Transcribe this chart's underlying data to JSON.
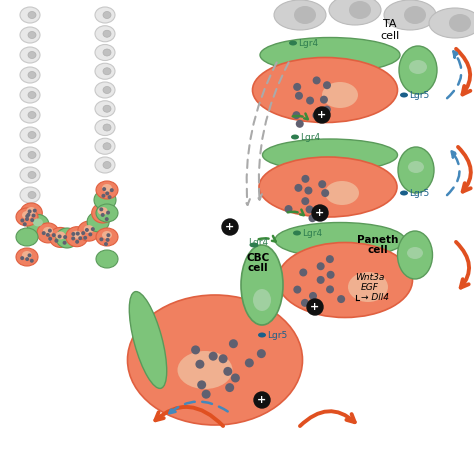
{
  "background_color": "#ffffff",
  "labels": {
    "TA_cell": "TA\ncell",
    "CBC_cell": "CBC\ncell",
    "Paneth_cell": "Paneth\ncell",
    "wnt_line1": "Wnt3a",
    "wnt_line2": "EGF",
    "wnt_line3": "→ Dll4"
  },
  "colors": {
    "orange_cell": "#F08060",
    "orange_cell_border": "#E06040",
    "green_cell": "#7DC47A",
    "green_cell_border": "#5A9A5A",
    "gray_cell": "#D0D0D0",
    "gray_cell_border": "#BBBBBB",
    "gray_villus": "#E8E8E8",
    "gray_villus_border": "#C8C8C8",
    "orange_arrow": "#E05020",
    "blue_arrow": "#4488BB",
    "green_arrow": "#3A8A3A",
    "gray_arrow": "#AAAAAA",
    "lgr4_dot": "#2E7D4F",
    "lgr5_dot": "#1A5F8A",
    "nucleus_orange": "#F0B090",
    "nucleus_green": "#A0D0A0",
    "dot_gray": "#606070",
    "plus_bg": "#111111",
    "plus_fg": "#FFFFFF"
  }
}
